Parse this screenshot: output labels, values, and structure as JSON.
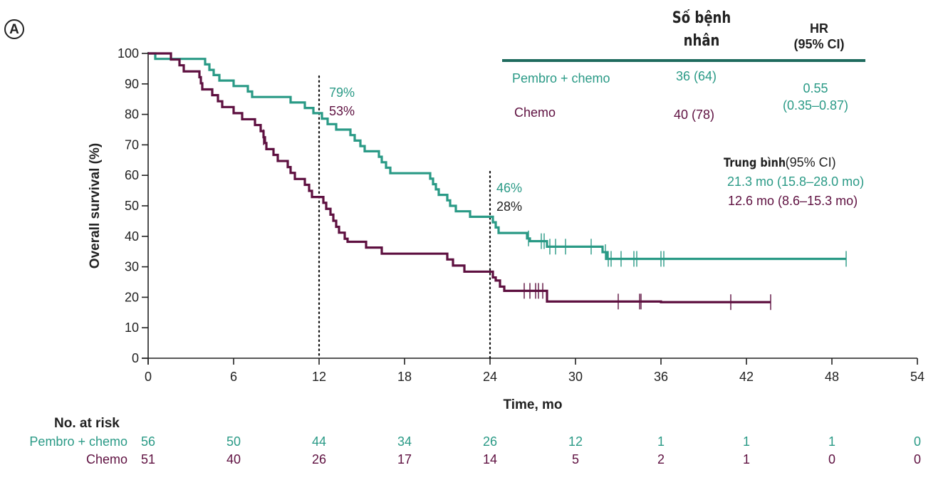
{
  "panel_label": "A",
  "legend_table": {
    "col_patients": [
      "Số bệnh",
      "nhân"
    ],
    "col_hr": [
      "HR",
      "(95% CI)"
    ],
    "rows": [
      {
        "name": "Pembro + chemo",
        "patients": "36 (64)"
      },
      {
        "name": "Chemo",
        "patients": "40 (78)"
      }
    ],
    "hr_value": "0.55",
    "hr_ci": "(0.35–0.87)"
  },
  "median": {
    "header_bold": "Trung bình",
    "header_rest": "(95% CI)",
    "pembro": "21.3 mo (15.8–28.0 mo)",
    "chemo": "12.6 mo (8.6–15.3 mo)"
  },
  "annotations": {
    "m12_pembro": "79%",
    "m12_chemo": "53%",
    "m24_pembro": "46%",
    "m24_chemo": "28%"
  },
  "risk_table": {
    "title": "No. at risk",
    "rows": [
      {
        "name": "Pembro + chemo",
        "values": [
          "56",
          "50",
          "44",
          "34",
          "26",
          "12",
          "1",
          "1",
          "1",
          "0"
        ]
      },
      {
        "name": "Chemo",
        "values": [
          "51",
          "40",
          "26",
          "17",
          "14",
          "5",
          "2",
          "1",
          "0",
          "0"
        ]
      }
    ]
  },
  "colors": {
    "pembro": "#2a9a86",
    "chemo": "#5e1040",
    "rule": "#1f6b5e",
    "axis": "#222222"
  },
  "chart_data": {
    "type": "line",
    "subtype": "kaplan-meier step",
    "xlabel": "Time, mo",
    "ylabel": "Overall survival (%)",
    "xlim": [
      0,
      54
    ],
    "ylim": [
      0,
      100
    ],
    "xticks": [
      0,
      6,
      12,
      18,
      24,
      30,
      36,
      42,
      48,
      54
    ],
    "yticks": [
      0,
      10,
      20,
      30,
      40,
      50,
      60,
      70,
      80,
      90,
      100
    ],
    "reference_lines_x": [
      12,
      24
    ],
    "grid": false,
    "series": [
      {
        "name": "Pembro + chemo",
        "color": "#2a9a86",
        "steps": [
          [
            0,
            100
          ],
          [
            0.5,
            98.2
          ],
          [
            4,
            96.4
          ],
          [
            4.3,
            94.6
          ],
          [
            4.6,
            92.9
          ],
          [
            5,
            91.1
          ],
          [
            6,
            89.3
          ],
          [
            7,
            87.5
          ],
          [
            7.3,
            85.7
          ],
          [
            10,
            83.9
          ],
          [
            11,
            82.1
          ],
          [
            11.6,
            80.4
          ],
          [
            12.2,
            78.6
          ],
          [
            12.6,
            76.8
          ],
          [
            13.2,
            75.0
          ],
          [
            14.2,
            73.2
          ],
          [
            14.5,
            71.4
          ],
          [
            14.9,
            69.6
          ],
          [
            15.2,
            67.9
          ],
          [
            16.2,
            66.1
          ],
          [
            16.4,
            64.3
          ],
          [
            16.7,
            62.5
          ],
          [
            17,
            60.7
          ],
          [
            19.8,
            58.9
          ],
          [
            20,
            57.1
          ],
          [
            20.2,
            55.4
          ],
          [
            20.4,
            53.6
          ],
          [
            21,
            51.8
          ],
          [
            21.2,
            50.0
          ],
          [
            21.6,
            48.2
          ],
          [
            22.6,
            46.4
          ],
          [
            24.2,
            44.6
          ],
          [
            24.4,
            42.9
          ],
          [
            24.6,
            41.1
          ],
          [
            26.6,
            39.3
          ],
          [
            26.8,
            38.4
          ],
          [
            28,
            36.6
          ],
          [
            31.9,
            34.8
          ],
          [
            32.2,
            32.6
          ],
          [
            49,
            32.6
          ]
        ],
        "censored": [
          26.7,
          27.6,
          27.8,
          28.2,
          28.6,
          29.3,
          31.1,
          32.1,
          32.3,
          32.5,
          33.2,
          34.1,
          34.3,
          36.0,
          36.2,
          49.0
        ]
      },
      {
        "name": "Chemo",
        "color": "#5e1040",
        "steps": [
          [
            0,
            100
          ],
          [
            1.6,
            98.0
          ],
          [
            2.2,
            96.1
          ],
          [
            2.5,
            94.1
          ],
          [
            3.6,
            92.2
          ],
          [
            3.7,
            90.2
          ],
          [
            3.8,
            88.2
          ],
          [
            4.5,
            86.3
          ],
          [
            4.9,
            84.3
          ],
          [
            5.2,
            82.4
          ],
          [
            6,
            80.4
          ],
          [
            6.6,
            78.4
          ],
          [
            7.5,
            76.5
          ],
          [
            7.9,
            74.5
          ],
          [
            8.1,
            72.5
          ],
          [
            8.2,
            70.6
          ],
          [
            8.3,
            68.6
          ],
          [
            8.8,
            66.7
          ],
          [
            9.1,
            64.7
          ],
          [
            9.8,
            62.7
          ],
          [
            10,
            60.8
          ],
          [
            10.3,
            58.8
          ],
          [
            11,
            56.9
          ],
          [
            11.3,
            54.9
          ],
          [
            11.5,
            52.9
          ],
          [
            12.3,
            51.0
          ],
          [
            12.5,
            49.0
          ],
          [
            12.8,
            47.1
          ],
          [
            13.0,
            45.1
          ],
          [
            13.2,
            43.1
          ],
          [
            13.4,
            41.2
          ],
          [
            13.8,
            39.2
          ],
          [
            14,
            38.2
          ],
          [
            15.3,
            36.3
          ],
          [
            16.4,
            34.3
          ],
          [
            21,
            32.4
          ],
          [
            21.4,
            30.4
          ],
          [
            22.2,
            28.4
          ],
          [
            24.2,
            26.5
          ],
          [
            24.4,
            25.5
          ],
          [
            24.7,
            23.5
          ],
          [
            25,
            22.1
          ],
          [
            28,
            18.6
          ],
          [
            36,
            18.4
          ],
          [
            43.7,
            18.4
          ]
        ],
        "censored": [
          8.1,
          26.4,
          26.8,
          27.2,
          27.4,
          27.7,
          33.0,
          34.5,
          34.6,
          40.9,
          43.7
        ]
      }
    ]
  }
}
